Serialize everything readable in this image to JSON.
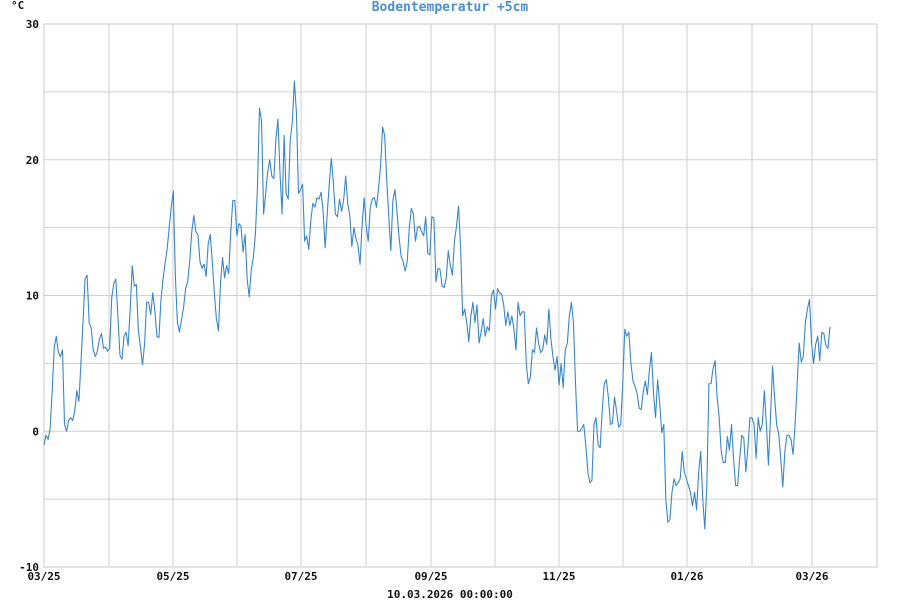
{
  "chart_data": {
    "type": "line",
    "title": "Bodentemperatur +5cm",
    "y_unit": "°C",
    "ylim": [
      -10,
      30
    ],
    "y_ticks": [
      -10,
      0,
      10,
      20,
      30
    ],
    "x_tick_labels": [
      "03/25",
      "05/25",
      "07/25",
      "09/25",
      "11/25",
      "01/26",
      "03/26"
    ],
    "timestamp": "10.03.2026 00:00:00",
    "grid": true,
    "colors": {
      "series": "#3a86c8",
      "title": "#4a8fcf",
      "grid": "#cfcfcf"
    },
    "series": [
      {
        "values": [
          -1,
          -0.3,
          -0.6,
          0.2,
          3,
          6.2,
          7,
          5.8,
          5.5,
          6,
          0.5,
          0,
          0.8,
          1,
          0.8,
          1.5,
          3,
          2.2,
          5,
          8,
          11.2,
          11.5,
          8,
          7.6,
          6,
          5.5,
          5.9,
          6.8,
          7.2,
          6.1,
          6.2,
          5.9,
          6.1,
          9.8,
          10.9,
          11.2,
          8.5,
          5.6,
          5.3,
          7,
          7.3,
          6.3,
          9,
          12.2,
          10.7,
          10.8,
          7.4,
          6.2,
          4.9,
          6.4,
          9.5,
          9.5,
          8.6,
          10.2,
          8.9,
          7,
          6.9,
          9.7,
          11.2,
          12.4,
          13.4,
          15,
          16.5,
          17.7,
          11.5,
          8,
          7.3,
          8.2,
          9.1,
          10.5,
          11,
          12.5,
          14.7,
          15.9,
          14.7,
          14.5,
          12.5,
          12,
          12.3,
          11.4,
          13.8,
          14.5,
          12.5,
          10.2,
          8.3,
          7.4,
          10.9,
          12.8,
          11.3,
          12.2,
          11.6,
          14.7,
          17,
          17,
          14.4,
          15.3,
          15.1,
          13.2,
          14.5,
          11.2,
          9.9,
          11.9,
          12.8,
          14.5,
          17.9,
          23.8,
          22.8,
          16,
          17.5,
          19.1,
          20,
          18.8,
          18.6,
          21.5,
          23,
          19,
          16,
          21.8,
          17.5,
          17.1,
          21.5,
          22.8,
          25.8,
          23.5,
          17.5,
          17.8,
          18.2,
          14,
          14.4,
          13.4,
          15.5,
          16.8,
          16.5,
          17.2,
          17.1,
          17.6,
          16.2,
          13.5,
          16,
          18.2,
          20.1,
          18.3,
          16,
          15.8,
          17.1,
          16.2,
          17,
          18.8,
          16.8,
          15.9,
          13.6,
          15,
          14.2,
          13.7,
          12.3,
          15.2,
          17.2,
          15.1,
          14,
          16.5,
          17.1,
          17.2,
          16.5,
          17.9,
          19.5,
          22.4,
          21.8,
          18.5,
          15.8,
          13.3,
          17,
          17.8,
          16.2,
          14.3,
          12.9,
          12.5,
          11.8,
          12.5,
          15,
          16.4,
          16,
          14,
          15,
          15.1,
          14.7,
          14.4,
          15.8,
          13.1,
          13,
          15.8,
          15.7,
          11,
          12,
          11.9,
          10.7,
          10.6,
          11.3,
          13.3,
          12.2,
          11.5,
          14,
          15.1,
          16.6,
          13.5,
          8.5,
          9,
          8,
          6.6,
          8.5,
          9.5,
          8,
          9.3,
          6.5,
          7.3,
          8.3,
          7,
          7.7,
          7.4,
          10,
          10.4,
          9,
          10.5,
          10.2,
          10.1,
          9.3,
          7.8,
          8.8,
          7.8,
          8.5,
          7.5,
          6,
          9.5,
          8.5,
          8.8,
          8.8,
          5,
          3.5,
          4,
          6,
          5.8,
          7.6,
          6.5,
          5.8,
          6,
          7.1,
          6.4,
          9,
          6.8,
          5.5,
          4.5,
          5.5,
          3.4,
          5,
          3.2,
          6,
          6.5,
          8.5,
          9.5,
          8,
          3.5,
          0,
          0,
          0.2,
          0.5,
          -1,
          -3,
          -3.8,
          -3.6,
          0.5,
          1,
          -1,
          -1.2,
          1.5,
          3.5,
          3.8,
          2.5,
          0.5,
          0.6,
          2.5,
          1.5,
          0.3,
          0.5,
          3.5,
          7.5,
          7,
          7.3,
          5,
          3.7,
          3.3,
          2.8,
          1.7,
          1.6,
          2.9,
          3.7,
          2.7,
          4.5,
          5.8,
          2.8,
          1,
          3.8,
          2.1,
          -0.1,
          0.5,
          -5,
          -6.7,
          -6.5,
          -4.5,
          -3.5,
          -4,
          -3.8,
          -3.5,
          -1.5,
          -3,
          -3.5,
          -4,
          -4.5,
          -5.5,
          -4.5,
          -5.8,
          -3,
          -1.5,
          -5,
          -7.2,
          -4,
          3.5,
          3.5,
          4.6,
          5.2,
          2.5,
          1,
          -1.5,
          -2.3,
          -2.3,
          -0.4,
          -1.4,
          0.5,
          -2,
          -4,
          -4,
          -2,
          -0.3,
          -0.5,
          -3,
          -1.2,
          1,
          1,
          0.5,
          -2,
          1,
          0,
          0.5,
          3,
          0.5,
          -2.5,
          1,
          4.8,
          2.5,
          0.5,
          -0.2,
          -2,
          -4.1,
          -1.5,
          -0.3,
          -0.3,
          -0.6,
          -1.7,
          0.5,
          3.5,
          6.5,
          5.1,
          5.5,
          8,
          9,
          9.7,
          6.5,
          5,
          6.4,
          7,
          5.2,
          7.3,
          7.2,
          6.3,
          6.1,
          7.7
        ]
      }
    ]
  }
}
